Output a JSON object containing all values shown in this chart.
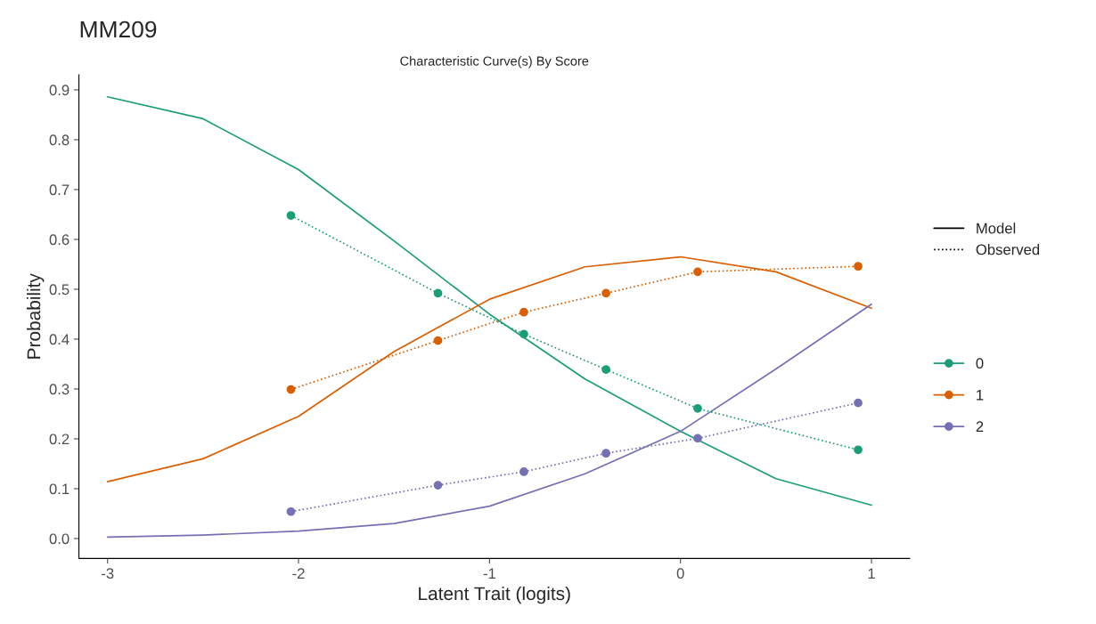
{
  "chart_data": {
    "type": "line",
    "title": "MM209",
    "subtitle": "Characteristic Curve(s) By Score",
    "xlabel": "Latent Trait (logits)",
    "ylabel": "Probability",
    "xlim": [
      -3.15,
      1.2
    ],
    "xticks": [
      -3,
      -2,
      -1,
      0,
      1
    ],
    "ylim": [
      -0.04,
      0.93
    ],
    "yticks": [
      {
        "value": 0,
        "label": "0.0"
      },
      0.1,
      0.2,
      0.3,
      0.4,
      0.5,
      0.6,
      0.7,
      0.8,
      0.9
    ],
    "grid": false,
    "legend": "right",
    "annotations": [
      "Model",
      "Observed"
    ],
    "series": [
      {
        "name": "0",
        "color": "#1b9e77",
        "line_style": "solid",
        "marker": "none",
        "x": [
          -3,
          -2.5,
          -2,
          -1.5,
          -1,
          -0.5,
          0,
          0.5,
          1
        ],
        "values": [
          0.886,
          0.842,
          0.74,
          0.597,
          0.45,
          0.32,
          0.215,
          0.12,
          0.067
        ]
      },
      {
        "name": "1",
        "color": "#d95f02",
        "line_style": "solid",
        "marker": "none",
        "x": [
          -3,
          -2.5,
          -2,
          -1.5,
          -1,
          -0.5,
          0,
          0.5,
          1
        ],
        "values": [
          0.114,
          0.16,
          0.245,
          0.375,
          0.48,
          0.545,
          0.565,
          0.535,
          0.462
        ]
      },
      {
        "name": "2",
        "color": "#7570b3",
        "line_style": "solid",
        "marker": "none",
        "x": [
          -3,
          -2.5,
          -2,
          -1.5,
          -1,
          -0.5,
          0,
          0.5,
          1
        ],
        "values": [
          0.003,
          0.007,
          0.015,
          0.03,
          0.065,
          0.13,
          0.215,
          0.34,
          0.47
        ]
      },
      {
        "color": "#1b9e77",
        "line_style": "dotted",
        "marker": "circle",
        "x": [
          -2.04,
          -1.27,
          -0.82,
          -0.39,
          0.09,
          0.93
        ],
        "values": [
          0.648,
          0.492,
          0.41,
          0.339,
          0.261,
          0.178
        ]
      },
      {
        "color": "#d95f02",
        "line_style": "dotted",
        "marker": "circle",
        "x": [
          -2.04,
          -1.27,
          -0.82,
          -0.39,
          0.09,
          0.93
        ],
        "values": [
          0.299,
          0.397,
          0.454,
          0.492,
          0.535,
          0.546
        ]
      },
      {
        "color": "#7570b3",
        "line_style": "dotted",
        "marker": "circle",
        "x": [
          -2.04,
          -1.27,
          -0.82,
          -0.39,
          0.09,
          0.93
        ],
        "values": [
          0.054,
          0.107,
          0.134,
          0.171,
          0.201,
          0.272
        ]
      }
    ]
  }
}
